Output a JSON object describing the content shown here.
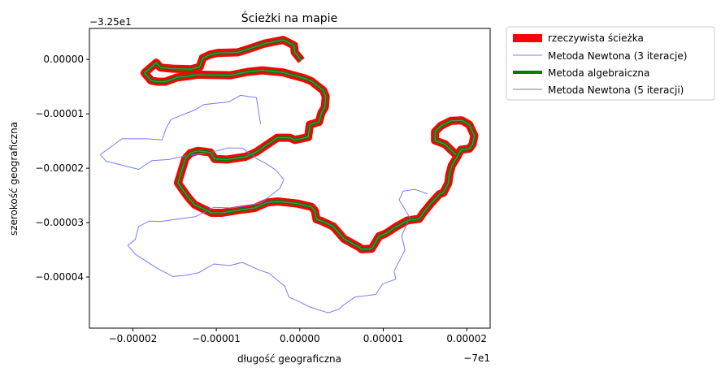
{
  "chart_data": {
    "type": "line",
    "title": "Ścieżki na mapie",
    "xlabel": "długość geograficzna",
    "ylabel": "szerokość geograficzna",
    "x_offset_label": "−7e1",
    "y_offset_label": "−3.25e1",
    "xlim": [
      -2.52e-05,
      2.28e-05
    ],
    "ylim": [
      -4.94e-05,
      5.7e-06
    ],
    "x_ticks": [
      -2e-05,
      -1e-05,
      0.0,
      1e-05,
      2e-05
    ],
    "x_tick_labels": [
      "−0.00002",
      "−0.00001",
      "0.00000",
      "0.00001",
      "0.00002"
    ],
    "y_ticks": [
      0.0,
      -1e-05,
      -2e-05,
      -3e-05,
      -4e-05
    ],
    "y_tick_labels": [
      "0.00000",
      "−0.00001",
      "−0.00002",
      "−0.00003",
      "−0.00004"
    ],
    "legend_placement": "outside right, top",
    "series": [
      {
        "name": "rzeczywista ścieżka",
        "color": "#ff0000",
        "style": "thick",
        "points": [
          [
            2e-07,
            -2e-07
          ],
          [
            -6e-07,
            1.3e-06
          ],
          [
            -7e-07,
            2.6e-06
          ],
          [
            -2e-06,
            3.6e-06
          ],
          [
            -4.3e-06,
            2.9e-06
          ],
          [
            -5.2e-06,
            2.4e-06
          ],
          [
            -7.2e-06,
            1.4e-06
          ],
          [
            -7.5e-06,
            1.3e-06
          ],
          [
            -9.8e-06,
            1.2e-06
          ],
          [
            -1.07e-05,
            9e-07
          ],
          [
            -1.16e-05,
            3e-07
          ],
          [
            -1.2e-05,
            -1.4e-06
          ],
          [
            -1.3e-05,
            -1.8e-06
          ],
          [
            -1.52e-05,
            -1.7e-06
          ],
          [
            -1.67e-05,
            -1.5e-06
          ],
          [
            -1.72e-05,
            -6e-07
          ],
          [
            -1.86e-05,
            -2.5e-06
          ],
          [
            -1.78e-05,
            -3.9e-06
          ],
          [
            -1.7e-05,
            -4.1e-06
          ],
          [
            -1.61e-05,
            -4.1e-06
          ],
          [
            -1.47e-05,
            -3.3e-06
          ],
          [
            -1.35e-05,
            -3.1e-06
          ],
          [
            -1.23e-05,
            -2.8e-06
          ],
          [
            -8.3e-06,
            -2.9e-06
          ],
          [
            -6.3e-06,
            -2.3e-06
          ],
          [
            -4.5e-06,
            -2e-06
          ],
          [
            -2e-06,
            -2.4e-06
          ],
          [
            6e-07,
            -3.5e-06
          ],
          [
            1.4e-06,
            -4e-06
          ],
          [
            2.8e-06,
            -5.7e-06
          ],
          [
            3.1e-06,
            -6.8e-06
          ],
          [
            3e-06,
            -8.8e-06
          ],
          [
            2.6e-06,
            -9.8e-06
          ],
          [
            2.3e-06,
            -1.15e-05
          ],
          [
            1.2e-06,
            -1.2e-05
          ],
          [
            1e-06,
            -1.43e-05
          ],
          [
            -6e-07,
            -1.48e-05
          ],
          [
            -1.2e-06,
            -1.44e-05
          ],
          [
            -2.7e-06,
            -1.44e-05
          ],
          [
            -5.2e-06,
            -1.7e-05
          ],
          [
            -6.5e-06,
            -1.79e-05
          ],
          [
            -8.7e-06,
            -1.84e-05
          ],
          [
            -1.02e-05,
            -1.83e-05
          ],
          [
            -1.07e-05,
            -1.71e-05
          ],
          [
            -1.22e-05,
            -1.68e-05
          ],
          [
            -1.31e-05,
            -1.72e-05
          ],
          [
            -1.37e-05,
            -1.82e-05
          ],
          [
            -1.46e-05,
            -2.27e-05
          ],
          [
            -1.42e-05,
            -2.36e-05
          ],
          [
            -1.34e-05,
            -2.53e-05
          ],
          [
            -1.26e-05,
            -2.67e-05
          ],
          [
            -1.06e-05,
            -2.82e-05
          ],
          [
            -9.3e-06,
            -2.82e-05
          ],
          [
            -6.9e-06,
            -2.76e-05
          ],
          [
            -5.4e-06,
            -2.73e-05
          ],
          [
            -3.9e-06,
            -2.63e-05
          ],
          [
            -2.7e-06,
            -2.61e-05
          ],
          [
            -3e-07,
            -2.65e-05
          ],
          [
            1.4e-06,
            -2.71e-05
          ],
          [
            1.8e-06,
            -2.78e-05
          ],
          [
            2e-06,
            -2.94e-05
          ],
          [
            2.6e-06,
            -2.97e-05
          ],
          [
            4e-06,
            -3.07e-05
          ],
          [
            5.3e-06,
            -3.3e-05
          ],
          [
            7.1e-06,
            -3.45e-05
          ],
          [
            7.4e-06,
            -3.49e-05
          ],
          [
            8.6e-06,
            -3.48e-05
          ],
          [
            9.5e-06,
            -3.25e-05
          ],
          [
            1.03e-05,
            -3.2e-05
          ],
          [
            1.15e-05,
            -3.08e-05
          ],
          [
            1.29e-05,
            -2.96e-05
          ],
          [
            1.43e-05,
            -2.93e-05
          ],
          [
            1.48e-05,
            -2.82e-05
          ],
          [
            1.57e-05,
            -2.65e-05
          ],
          [
            1.67e-05,
            -2.48e-05
          ],
          [
            1.72e-05,
            -2.45e-05
          ],
          [
            1.78e-05,
            -2.27e-05
          ],
          [
            1.79e-05,
            -2.13e-05
          ],
          [
            1.82e-05,
            -1.95e-05
          ],
          [
            1.87e-05,
            -1.83e-05
          ],
          [
            1.93e-05,
            -1.66e-05
          ],
          [
            2.03e-05,
            -1.64e-05
          ],
          [
            2.07e-05,
            -1.56e-05
          ],
          [
            2.09e-05,
            -1.4e-05
          ],
          [
            2.03e-05,
            -1.2e-05
          ],
          [
            1.94e-05,
            -1.12e-05
          ],
          [
            1.81e-05,
            -1.13e-05
          ],
          [
            1.69e-05,
            -1.22e-05
          ],
          [
            1.62e-05,
            -1.33e-05
          ],
          [
            1.62e-05,
            -1.49e-05
          ],
          [
            1.74e-05,
            -1.56e-05
          ],
          [
            1.87e-05,
            -1.75e-05
          ]
        ]
      },
      {
        "name": "Metoda Newtona (3 iteracje)",
        "color": "#7a7aff",
        "style": "thin",
        "points": [
          [
            -4.7e-06,
            -1.19e-05
          ],
          [
            -5.2e-06,
            -7e-06
          ],
          [
            -7.1e-06,
            -6.6e-06
          ],
          [
            -8.5e-06,
            -7.8e-06
          ],
          [
            -1.15e-05,
            -8.3e-06
          ],
          [
            -1.26e-05,
            -9.3e-06
          ],
          [
            -1.54e-05,
            -1.1e-05
          ],
          [
            -1.6e-05,
            -1.26e-05
          ],
          [
            -1.65e-05,
            -1.48e-05
          ],
          [
            -1.83e-05,
            -1.46e-05
          ],
          [
            -2.13e-05,
            -1.46e-05
          ],
          [
            -2.22e-05,
            -1.56e-05
          ],
          [
            -2.39e-05,
            -1.75e-05
          ],
          [
            -2.32e-05,
            -1.87e-05
          ],
          [
            -2.09e-05,
            -1.96e-05
          ],
          [
            -1.93e-05,
            -2.02e-05
          ],
          [
            -1.77e-05,
            -1.86e-05
          ],
          [
            -1.57e-05,
            -1.84e-05
          ],
          [
            -1.33e-05,
            -1.76e-05
          ],
          [
            -1.09e-05,
            -1.72e-05
          ],
          [
            -8.7e-06,
            -1.63e-05
          ],
          [
            -6.9e-06,
            -1.63e-05
          ],
          [
            -5.1e-06,
            -1.83e-05
          ],
          [
            -4.1e-06,
            -1.91e-05
          ],
          [
            -2.9e-06,
            -2.03e-05
          ],
          [
            -1.9e-06,
            -2.21e-05
          ],
          [
            -2.4e-06,
            -2.37e-05
          ],
          [
            -3.2e-06,
            -2.47e-05
          ],
          [
            -4.7e-06,
            -2.64e-05
          ],
          [
            -8.1e-06,
            -2.73e-05
          ],
          [
            -1.03e-05,
            -2.72e-05
          ],
          [
            -1.25e-05,
            -2.89e-05
          ],
          [
            -1.67e-05,
            -2.98e-05
          ],
          [
            -1.8e-05,
            -2.97e-05
          ],
          [
            -1.93e-05,
            -3.07e-05
          ],
          [
            -1.97e-05,
            -3.31e-05
          ],
          [
            -2.06e-05,
            -3.42e-05
          ],
          [
            -1.97e-05,
            -3.58e-05
          ],
          [
            -1.72e-05,
            -3.83e-05
          ],
          [
            -1.52e-05,
            -3.99e-05
          ],
          [
            -1.37e-05,
            -3.97e-05
          ],
          [
            -1.21e-05,
            -3.92e-05
          ],
          [
            -1.03e-05,
            -3.76e-05
          ],
          [
            -8.4e-06,
            -3.79e-05
          ],
          [
            -6.9e-06,
            -3.73e-05
          ],
          [
            -4.9e-06,
            -3.87e-05
          ],
          [
            -3.7e-06,
            -3.93e-05
          ],
          [
            -1.8e-06,
            -4.17e-05
          ],
          [
            -1.3e-06,
            -4.37e-05
          ],
          [
            -4e-07,
            -4.43e-05
          ],
          [
            1.2e-06,
            -4.55e-05
          ],
          [
            3.4e-06,
            -4.66e-05
          ],
          [
            4.7e-06,
            -4.59e-05
          ],
          [
            5.2e-06,
            -4.52e-05
          ],
          [
            6.6e-06,
            -4.37e-05
          ],
          [
            9.1e-06,
            -4.32e-05
          ],
          [
            9.9e-06,
            -4.13e-05
          ],
          [
            1.15e-05,
            -4.04e-05
          ],
          [
            1.13e-05,
            -3.89e-05
          ],
          [
            1.26e-05,
            -3.5e-05
          ],
          [
            1.22e-05,
            -3.24e-05
          ],
          [
            1.32e-05,
            -2.91e-05
          ],
          [
            1.19e-05,
            -2.58e-05
          ],
          [
            1.24e-05,
            -2.42e-05
          ],
          [
            1.38e-05,
            -2.39e-05
          ],
          [
            1.53e-05,
            -2.47e-05
          ]
        ]
      },
      {
        "name": "Metoda algebraiczna",
        "color": "#008000",
        "style": "medium",
        "same_path_as": "rzeczywista ścieżka"
      },
      {
        "name": "Metoda Newtona (5 iteracji)",
        "color": "#808080",
        "style": "thin",
        "same_path_as": "rzeczywista ścieżka"
      }
    ]
  }
}
